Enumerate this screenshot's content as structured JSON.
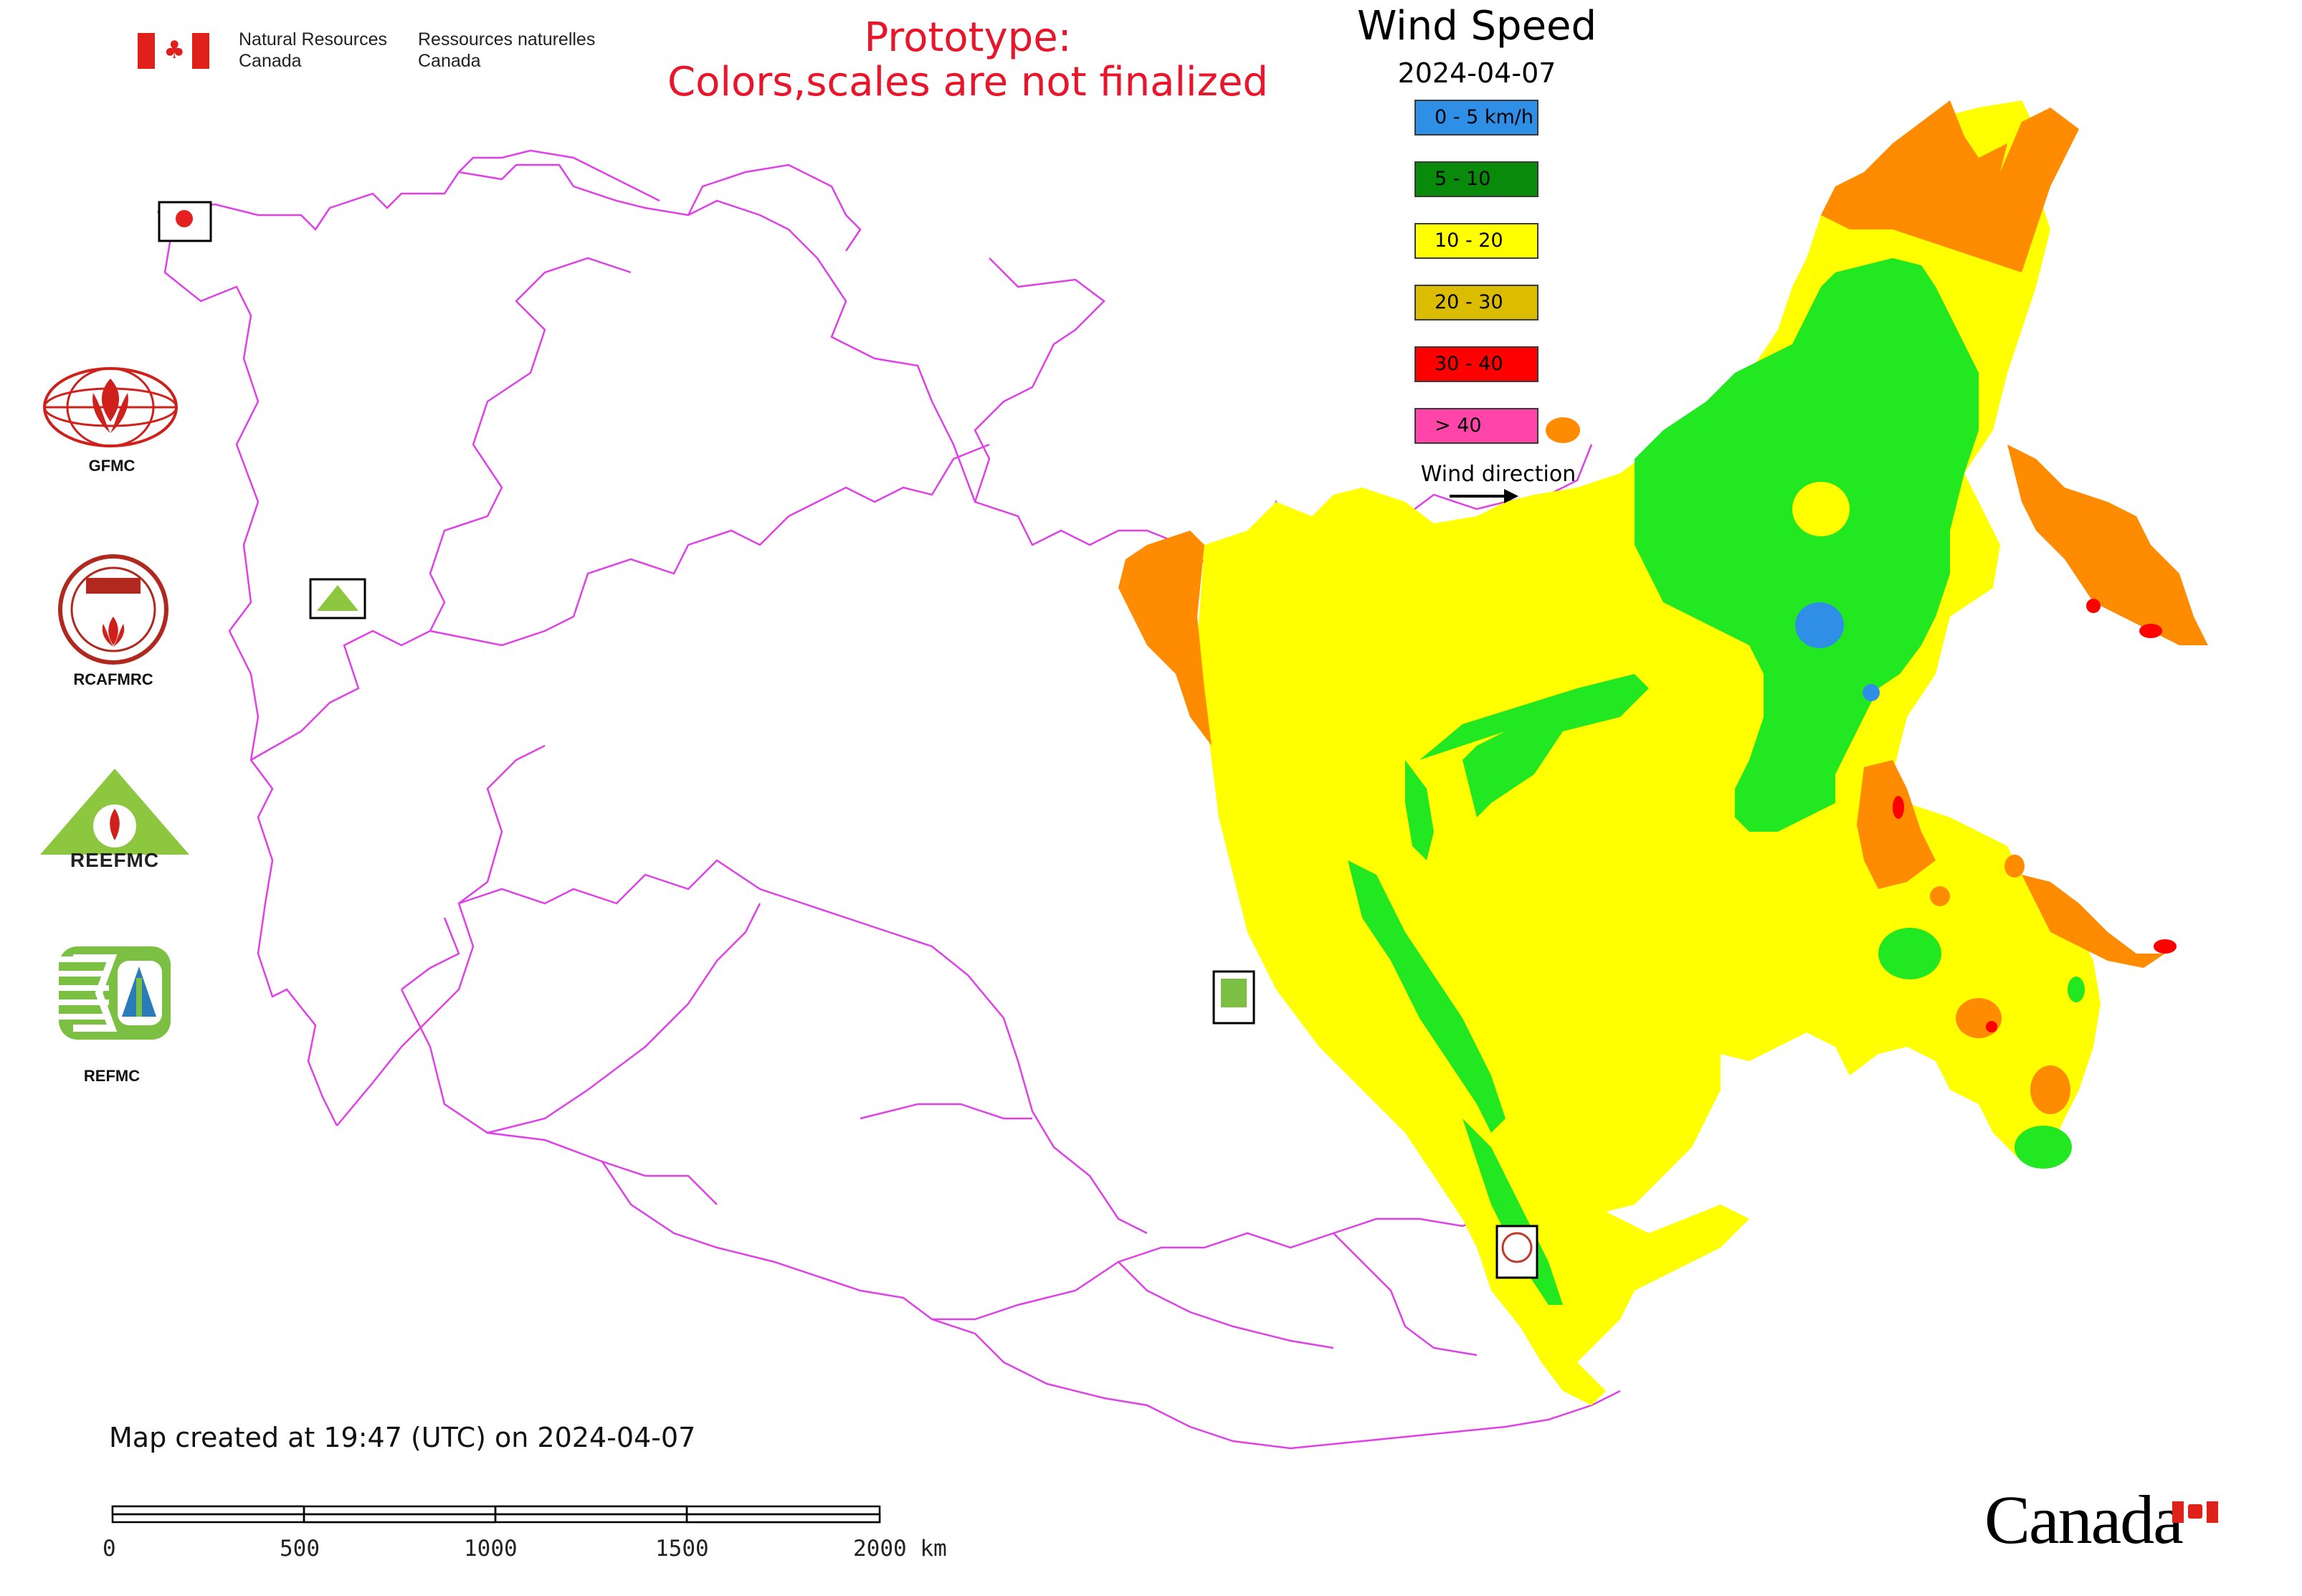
{
  "header": {
    "nrcan_en_line1": "Natural Resources",
    "nrcan_en_line2": "Canada",
    "nrcan_fr_line1": "Ressources naturelles",
    "nrcan_fr_line2": "Canada",
    "prototype_line1": "Prototype:",
    "prototype_line2": "Colors,scales are not finalized"
  },
  "legend": {
    "title": "Wind Speed",
    "date": "2024-04-07",
    "items": [
      {
        "label": "0 - 5 km/h",
        "color": "#2f8fe6"
      },
      {
        "label": "5 - 10",
        "color": "#0a8a0a"
      },
      {
        "label": "10 - 20",
        "color": "#ffff00"
      },
      {
        "label": "20 - 30",
        "color": "#dcbc00"
      },
      {
        "label": "30 - 40",
        "color": "#ff0000"
      },
      {
        "label": "> 40",
        "color": "#ff44aa"
      }
    ],
    "wind_direction_label": "Wind direction"
  },
  "map_colors": {
    "boundary": "#e040e8",
    "calm": "#2f8fe6",
    "light": "#22e822",
    "moderate": "#ffff00",
    "fresh": "#ff8c00",
    "strong": "#ff0000"
  },
  "organizations": [
    {
      "name": "GFMC",
      "icon": "gfmc-logo"
    },
    {
      "name": "RCAFMRC",
      "icon": "rcafmrc-logo"
    },
    {
      "name": "REEFMC",
      "icon": "reefmc-logo"
    },
    {
      "name": "REFMC",
      "icon": "refmc-logo"
    }
  ],
  "footer": {
    "created": "Map created at 19:47 (UTC) on 2024-04-07",
    "scale_ticks": [
      "0",
      "500",
      "1000",
      "1500",
      "2000 km"
    ],
    "wordmark": "Canada"
  }
}
